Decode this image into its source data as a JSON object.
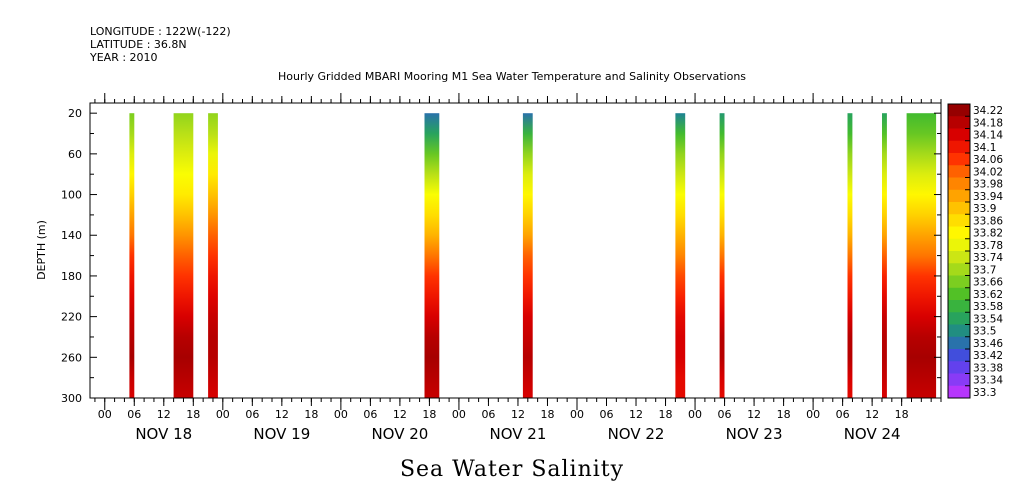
{
  "header": {
    "longitude": "LONGITUDE : 122W(-122)",
    "latitude": "LATITUDE : 36.8N",
    "year": "YEAR : 2010"
  },
  "chart_data": {
    "type": "heatmap",
    "title": "Hourly Gridded MBARI Mooring M1 Sea Water Temperature and Salinity Observations",
    "ylabel": "DEPTH (m)",
    "xlabel": "",
    "footer_title": "Sea Water Salinity",
    "x_start": "2010-11-17T21:00",
    "x_end": "2010-11-25T02:00",
    "ylim": [
      300,
      10
    ],
    "y_inverted": true,
    "y_ticks": [
      20,
      60,
      100,
      140,
      180,
      220,
      260,
      300
    ],
    "x_hour_labels": [
      "00",
      "06",
      "12",
      "18",
      "00",
      "06",
      "12",
      "18",
      "00",
      "06",
      "12",
      "18",
      "00",
      "06",
      "12",
      "18",
      "00",
      "06",
      "12",
      "18",
      "00",
      "06",
      "12",
      "18",
      "00",
      "06",
      "12",
      "18"
    ],
    "x_hour_positions": [
      "2010-11-18T00:00",
      "2010-11-18T06:00",
      "2010-11-18T12:00",
      "2010-11-18T18:00",
      "2010-11-19T00:00",
      "2010-11-19T06:00",
      "2010-11-19T12:00",
      "2010-11-19T18:00",
      "2010-11-20T00:00",
      "2010-11-20T06:00",
      "2010-11-20T12:00",
      "2010-11-20T18:00",
      "2010-11-21T00:00",
      "2010-11-21T06:00",
      "2010-11-21T12:00",
      "2010-11-21T18:00",
      "2010-11-22T00:00",
      "2010-11-22T06:00",
      "2010-11-22T12:00",
      "2010-11-22T18:00",
      "2010-11-23T00:00",
      "2010-11-23T06:00",
      "2010-11-23T12:00",
      "2010-11-23T18:00",
      "2010-11-24T00:00",
      "2010-11-24T06:00",
      "2010-11-24T12:00",
      "2010-11-24T18:00"
    ],
    "day_labels": [
      "NOV 18",
      "NOV 19",
      "NOV 20",
      "NOV 21",
      "NOV 22",
      "NOV 23",
      "NOV 24"
    ],
    "day_label_positions": [
      "2010-11-18T12:00",
      "2010-11-19T12:00",
      "2010-11-20T12:00",
      "2010-11-21T12:00",
      "2010-11-22T12:00",
      "2010-11-23T12:00",
      "2010-11-24T12:00"
    ],
    "colorbar_levels": [
      "34.22",
      "34.18",
      "34.14",
      "34.1",
      "34.06",
      "34.02",
      "33.98",
      "33.94",
      "33.9",
      "33.86",
      "33.82",
      "33.78",
      "33.74",
      "33.7",
      "33.66",
      "33.62",
      "33.58",
      "33.54",
      "33.5",
      "33.46",
      "33.42",
      "33.38",
      "33.34",
      "33.3"
    ],
    "colorbar_range": [
      33.3,
      34.24
    ],
    "depths": [
      20,
      40,
      60,
      80,
      100,
      120,
      140,
      160,
      180,
      200,
      220,
      240,
      260,
      280,
      300
    ],
    "columns": [
      {
        "start": "2010-11-18T05:00",
        "end": "2010-11-18T06:00",
        "salinity": [
          33.68,
          33.72,
          33.78,
          33.84,
          33.9,
          33.96,
          34.02,
          34.08,
          34.12,
          34.15,
          34.18,
          34.2,
          34.22,
          34.18,
          34.16
        ]
      },
      {
        "start": "2010-11-18T14:00",
        "end": "2010-11-18T18:00",
        "salinity": [
          33.7,
          33.74,
          33.78,
          33.82,
          33.86,
          33.92,
          33.98,
          34.04,
          34.08,
          34.12,
          34.16,
          34.2,
          34.22,
          34.2,
          34.18
        ]
      },
      {
        "start": "2010-11-18T21:00",
        "end": "2010-11-18T23:00",
        "salinity": [
          33.7,
          33.74,
          33.8,
          33.86,
          33.92,
          33.98,
          34.04,
          34.08,
          34.12,
          34.15,
          34.18,
          34.2,
          34.2,
          34.18,
          34.16
        ]
      },
      {
        "start": "2010-11-20T17:00",
        "end": "2010-11-20T20:00",
        "salinity": [
          33.48,
          33.56,
          33.66,
          33.74,
          33.82,
          33.88,
          33.94,
          34.02,
          34.08,
          34.12,
          34.16,
          34.2,
          34.22,
          34.2,
          34.18
        ]
      },
      {
        "start": "2010-11-21T13:00",
        "end": "2010-11-21T15:00",
        "salinity": [
          33.48,
          33.6,
          33.7,
          33.78,
          33.84,
          33.9,
          33.96,
          34.04,
          34.08,
          34.12,
          34.16,
          34.18,
          34.2,
          34.18,
          34.16
        ]
      },
      {
        "start": "2010-11-22T20:00",
        "end": "2010-11-22T22:00",
        "salinity": [
          33.5,
          33.62,
          33.7,
          33.76,
          33.82,
          33.88,
          33.94,
          34.0,
          34.06,
          34.1,
          34.14,
          34.16,
          34.16,
          34.14,
          34.14
        ]
      },
      {
        "start": "2010-11-23T05:00",
        "end": "2010-11-23T06:00",
        "salinity": [
          33.54,
          33.62,
          33.7,
          33.76,
          33.82,
          33.88,
          33.94,
          34.02,
          34.08,
          34.12,
          34.16,
          34.2,
          34.2,
          34.16,
          34.14
        ]
      },
      {
        "start": "2010-11-24T07:00",
        "end": "2010-11-24T08:00",
        "salinity": [
          33.56,
          33.62,
          33.7,
          33.76,
          33.82,
          33.88,
          33.94,
          34.02,
          34.08,
          34.12,
          34.16,
          34.2,
          34.2,
          34.16,
          34.14
        ]
      },
      {
        "start": "2010-11-24T14:00",
        "end": "2010-11-24T15:00",
        "salinity": [
          33.56,
          33.64,
          33.72,
          33.78,
          33.84,
          33.9,
          33.96,
          34.04,
          34.1,
          34.14,
          34.18,
          34.2,
          34.2,
          34.18,
          34.16
        ]
      },
      {
        "start": "2010-11-24T19:00",
        "end": "2010-11-25T01:00",
        "salinity": [
          33.62,
          33.66,
          33.72,
          33.78,
          33.84,
          33.9,
          33.96,
          34.02,
          34.08,
          34.12,
          34.16,
          34.2,
          34.22,
          34.2,
          34.18
        ]
      }
    ]
  }
}
